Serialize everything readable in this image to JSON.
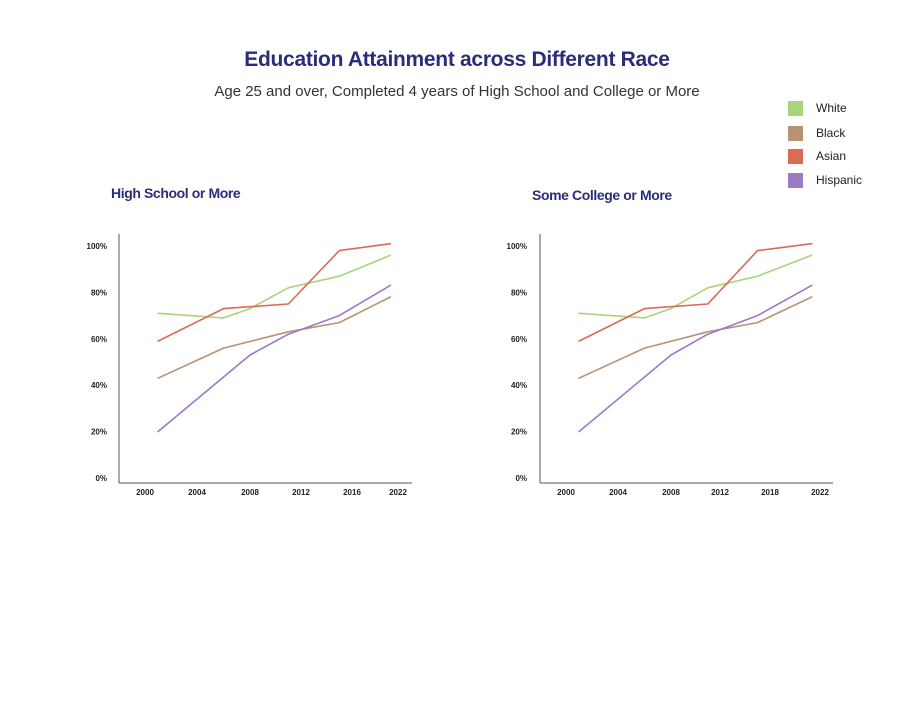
{
  "header": {
    "title": "Education Attainment across Different Race",
    "subtitle": "Age 25 and over, Completed 4 years of High School and College or More"
  },
  "legend": {
    "items": [
      {
        "label": "White",
        "color": "#a9d47c"
      },
      {
        "label": "Black",
        "color": "#b99274"
      },
      {
        "label": "Asian",
        "color": "#d96b57"
      },
      {
        "label": "Hispanic",
        "color": "#9c7ac4"
      }
    ]
  },
  "panels": [
    {
      "title": "High School or More"
    },
    {
      "title": "Some College or More"
    }
  ],
  "chart_data": [
    {
      "type": "line",
      "title": "High School or More",
      "x_ticks": [
        "2000",
        "2004",
        "2008",
        "2012",
        "2016",
        "2022"
      ],
      "y_ticks": [
        "0%",
        "20%",
        "40%",
        "60%",
        "80%",
        "100%"
      ],
      "xlim": [
        2000,
        2022
      ],
      "ylim": [
        0,
        100
      ],
      "grid": false,
      "series": [
        {
          "name": "White",
          "color": "#a9d47c",
          "x": [
            2001,
            2006,
            2008,
            2011,
            2015,
            2021
          ],
          "y": [
            71,
            69,
            73,
            82,
            87,
            96
          ]
        },
        {
          "name": "Black",
          "color": "#b99274",
          "x": [
            2001,
            2006,
            2011,
            2015,
            2021
          ],
          "y": [
            43,
            56,
            63,
            67,
            78
          ]
        },
        {
          "name": "Asian",
          "color": "#d96b57",
          "x": [
            2001,
            2006,
            2011,
            2015,
            2021
          ],
          "y": [
            59,
            73,
            75,
            98,
            101
          ]
        },
        {
          "name": "Hispanic",
          "color": "#9c7ac4",
          "x": [
            2001,
            2008,
            2011,
            2015,
            2021
          ],
          "y": [
            20,
            53,
            62,
            70,
            83
          ]
        }
      ]
    },
    {
      "type": "line",
      "title": "Some College or More",
      "x_ticks": [
        "2000",
        "2004",
        "2008",
        "2012",
        "2018",
        "2022"
      ],
      "y_ticks": [
        "0%",
        "20%",
        "40%",
        "60%",
        "80%",
        "100%"
      ],
      "xlim": [
        2000,
        2022
      ],
      "ylim": [
        0,
        100
      ],
      "grid": false,
      "series": [
        {
          "name": "White",
          "color": "#a9d47c",
          "x": [
            2001,
            2006,
            2008,
            2011,
            2015,
            2021
          ],
          "y": [
            71,
            69,
            73,
            82,
            87,
            96
          ]
        },
        {
          "name": "Black",
          "color": "#b99274",
          "x": [
            2001,
            2006,
            2011,
            2015,
            2021
          ],
          "y": [
            43,
            56,
            63,
            67,
            78
          ]
        },
        {
          "name": "Asian",
          "color": "#d96b57",
          "x": [
            2001,
            2006,
            2011,
            2015,
            2021
          ],
          "y": [
            59,
            73,
            75,
            98,
            101
          ]
        },
        {
          "name": "Hispanic",
          "color": "#9c7ac4",
          "x": [
            2001,
            2008,
            2011,
            2015,
            2021
          ],
          "y": [
            20,
            53,
            62,
            70,
            83
          ]
        }
      ]
    }
  ]
}
